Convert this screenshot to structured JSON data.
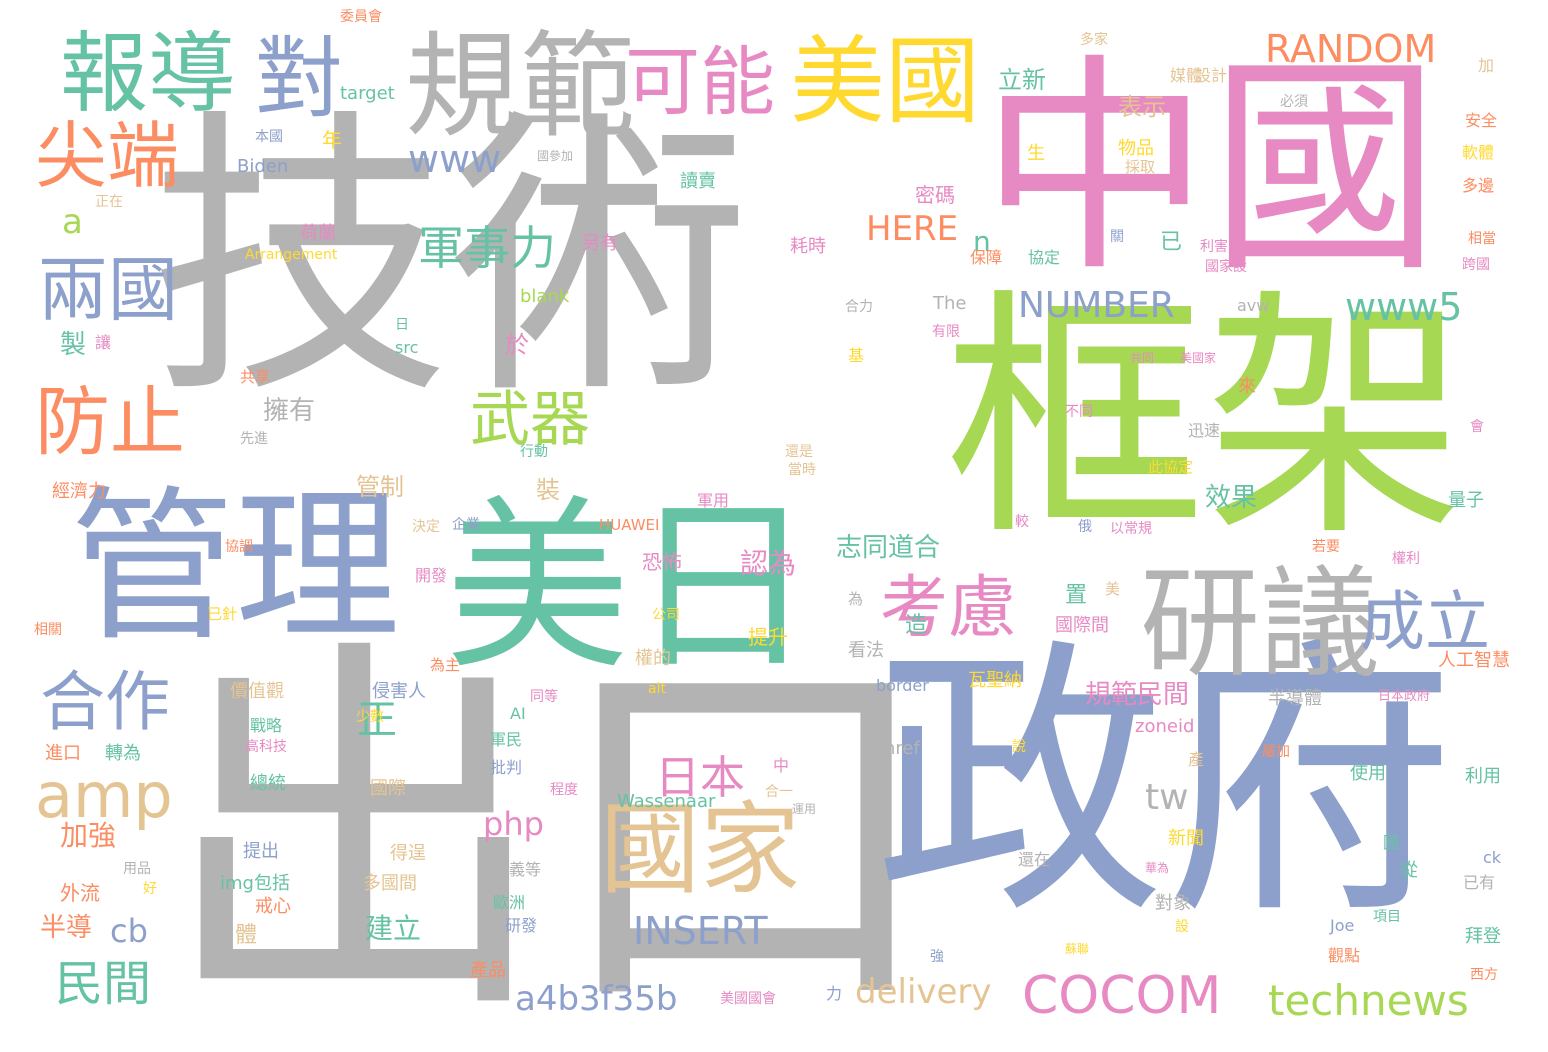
{
  "colors": {
    "gray": "#b3b3b3",
    "blue": "#8da0cb",
    "green": "#a6d854",
    "pink": "#e78ac3",
    "teal": "#66c2a5",
    "orange": "#fc8d62",
    "yellow": "#ffd92f",
    "tan": "#e5c494"
  },
  "words": [
    {
      "text": "技術",
      "color": "gray"
    },
    {
      "text": "出口",
      "color": "gray"
    },
    {
      "text": "中國",
      "color": "pink"
    },
    {
      "text": "框架",
      "color": "green"
    },
    {
      "text": "政府",
      "color": "blue"
    },
    {
      "text": "管理",
      "color": "blue"
    },
    {
      "text": "美日",
      "color": "teal"
    },
    {
      "text": "規範",
      "color": "gray"
    },
    {
      "text": "研議",
      "color": "gray"
    },
    {
      "text": "美國",
      "color": "yellow"
    },
    {
      "text": "報導",
      "color": "teal"
    },
    {
      "text": "對",
      "color": "blue"
    },
    {
      "text": "可能",
      "color": "pink"
    },
    {
      "text": "國家",
      "color": "tan"
    },
    {
      "text": "尖端",
      "color": "orange"
    },
    {
      "text": "兩國",
      "color": "blue"
    },
    {
      "text": "防止",
      "color": "orange"
    },
    {
      "text": "考慮",
      "color": "pink"
    },
    {
      "text": "成立",
      "color": "blue"
    },
    {
      "text": "合作",
      "color": "blue"
    },
    {
      "text": "amp",
      "color": "tan"
    },
    {
      "text": "武器",
      "color": "green"
    },
    {
      "text": "COCOM",
      "color": "pink"
    },
    {
      "text": "technews",
      "color": "green"
    },
    {
      "text": "RANDOM",
      "color": "orange"
    },
    {
      "text": "www",
      "color": "blue"
    },
    {
      "text": "www5",
      "color": "teal"
    },
    {
      "text": "NUMBER",
      "color": "blue"
    },
    {
      "text": "軍事力",
      "color": "teal"
    },
    {
      "text": "日本",
      "color": "pink"
    },
    {
      "text": "INSERT",
      "color": "blue"
    },
    {
      "text": "a4b3f35b",
      "color": "blue"
    },
    {
      "text": "delivery",
      "color": "tan"
    },
    {
      "text": "民間",
      "color": "teal"
    },
    {
      "text": "HERE",
      "color": "orange"
    },
    {
      "text": "正",
      "color": "teal"
    },
    {
      "text": "tw",
      "color": "gray"
    },
    {
      "text": "php",
      "color": "pink"
    },
    {
      "text": "規範民間",
      "color": "pink"
    },
    {
      "text": "志同道合",
      "color": "teal"
    },
    {
      "text": "認為",
      "color": "pink"
    },
    {
      "text": "a",
      "color": "green"
    },
    {
      "text": "cb",
      "color": "blue"
    },
    {
      "text": "表示",
      "color": "tan"
    },
    {
      "text": "立新",
      "color": "teal"
    },
    {
      "text": "擁有",
      "color": "gray"
    },
    {
      "text": "效果",
      "color": "teal"
    },
    {
      "text": "管制",
      "color": "tan"
    },
    {
      "text": "建立",
      "color": "teal"
    },
    {
      "text": "加強",
      "color": "orange"
    },
    {
      "text": "半導",
      "color": "orange"
    },
    {
      "text": "n",
      "color": "teal"
    },
    {
      "text": "已",
      "color": "teal"
    },
    {
      "text": "於",
      "color": "pink"
    },
    {
      "text": "裝",
      "color": "tan"
    },
    {
      "text": "置",
      "color": "teal"
    },
    {
      "text": "造",
      "color": "teal"
    },
    {
      "text": "提升",
      "color": "yellow"
    },
    {
      "text": "製",
      "color": "teal"
    },
    {
      "text": "年",
      "color": "yellow"
    },
    {
      "text": "體",
      "color": "tan"
    },
    {
      "text": "Wassenaar",
      "color": "teal"
    },
    {
      "text": "target",
      "color": "teal"
    },
    {
      "text": "Biden",
      "color": "blue"
    },
    {
      "text": "媒體",
      "color": "tan"
    },
    {
      "text": "設計",
      "color": "tan"
    },
    {
      "text": "加",
      "color": "tan"
    },
    {
      "text": "安全",
      "color": "orange"
    },
    {
      "text": "軟體",
      "color": "yellow"
    },
    {
      "text": "多家",
      "color": "tan"
    },
    {
      "text": "委員會",
      "color": "orange"
    },
    {
      "text": "本國",
      "color": "blue"
    },
    {
      "text": "國參加",
      "color": "gray"
    },
    {
      "text": "正在",
      "color": "tan"
    },
    {
      "text": "讀賣",
      "color": "teal"
    },
    {
      "text": "密碼",
      "color": "pink"
    },
    {
      "text": "物品",
      "color": "yellow"
    },
    {
      "text": "生",
      "color": "yellow"
    },
    {
      "text": "採取",
      "color": "tan"
    },
    {
      "text": "必須",
      "color": "gray"
    },
    {
      "text": "多邊",
      "color": "orange"
    },
    {
      "text": "荷蘭",
      "color": "pink"
    },
    {
      "text": "另有",
      "color": "pink"
    },
    {
      "text": "耗時",
      "color": "pink"
    },
    {
      "text": "保障",
      "color": "orange"
    },
    {
      "text": "協定",
      "color": "teal"
    },
    {
      "text": "關",
      "color": "blue"
    },
    {
      "text": "利害",
      "color": "pink"
    },
    {
      "text": "相當",
      "color": "orange"
    },
    {
      "text": "國家設",
      "color": "pink"
    },
    {
      "text": "跨國",
      "color": "pink"
    },
    {
      "text": "Arrangement",
      "color": "yellow"
    },
    {
      "text": "blank",
      "color": "green"
    },
    {
      "text": "合力",
      "color": "gray"
    },
    {
      "text": "The",
      "color": "gray"
    },
    {
      "text": "avw",
      "color": "gray"
    },
    {
      "text": "有限",
      "color": "pink"
    },
    {
      "text": "讓",
      "color": "pink"
    },
    {
      "text": "日",
      "color": "teal"
    },
    {
      "text": "src",
      "color": "teal"
    },
    {
      "text": "基",
      "color": "yellow"
    },
    {
      "text": "共享",
      "color": "orange"
    },
    {
      "text": "共同",
      "color": "pink"
    },
    {
      "text": "美國家",
      "color": "pink"
    },
    {
      "text": "來",
      "color": "orange"
    },
    {
      "text": "係",
      "color": "green"
    },
    {
      "text": "不同",
      "color": "pink"
    },
    {
      "text": "迅速",
      "color": "gray"
    },
    {
      "text": "會",
      "color": "pink"
    },
    {
      "text": "先進",
      "color": "gray"
    },
    {
      "text": "行動",
      "color": "teal"
    },
    {
      "text": "還是",
      "color": "tan"
    },
    {
      "text": "當時",
      "color": "tan"
    },
    {
      "text": "此協定",
      "color": "yellow"
    },
    {
      "text": "經濟力",
      "color": "orange"
    },
    {
      "text": "軍用",
      "color": "pink"
    },
    {
      "text": "量子",
      "color": "teal"
    },
    {
      "text": "決定",
      "color": "tan"
    },
    {
      "text": "企業",
      "color": "blue"
    },
    {
      "text": "HUAWEI",
      "color": "orange"
    },
    {
      "text": "較",
      "color": "pink"
    },
    {
      "text": "俄",
      "color": "blue"
    },
    {
      "text": "以常規",
      "color": "pink"
    },
    {
      "text": "若要",
      "color": "orange"
    },
    {
      "text": "權利",
      "color": "pink"
    },
    {
      "text": "協調",
      "color": "orange"
    },
    {
      "text": "開發",
      "color": "pink"
    },
    {
      "text": "恐怖",
      "color": "pink"
    },
    {
      "text": "美",
      "color": "tan"
    },
    {
      "text": "為",
      "color": "gray"
    },
    {
      "text": "已針",
      "color": "yellow"
    },
    {
      "text": "公司",
      "color": "yellow"
    },
    {
      "text": "國際間",
      "color": "pink"
    },
    {
      "text": "相關",
      "color": "orange"
    },
    {
      "text": "為主",
      "color": "orange"
    },
    {
      "text": "權的",
      "color": "tan"
    },
    {
      "text": "看法",
      "color": "gray"
    },
    {
      "text": "瓦聖納",
      "color": "yellow"
    },
    {
      "text": "人工智慧",
      "color": "orange"
    },
    {
      "text": "價值觀",
      "color": "tan"
    },
    {
      "text": "侵害人",
      "color": "blue"
    },
    {
      "text": "alt",
      "color": "yellow"
    },
    {
      "text": "border",
      "color": "blue"
    },
    {
      "text": "半導體",
      "color": "gray"
    },
    {
      "text": "日本政府",
      "color": "pink"
    },
    {
      "text": "少數",
      "color": "yellow"
    },
    {
      "text": "同等",
      "color": "pink"
    },
    {
      "text": "AI",
      "color": "teal"
    },
    {
      "text": "zoneid",
      "color": "pink"
    },
    {
      "text": "戰略",
      "color": "teal"
    },
    {
      "text": "高科技",
      "color": "pink"
    },
    {
      "text": "軍民",
      "color": "teal"
    },
    {
      "text": "進口",
      "color": "orange"
    },
    {
      "text": "轉為",
      "color": "teal"
    },
    {
      "text": "href",
      "color": "gray"
    },
    {
      "text": "說",
      "color": "yellow"
    },
    {
      "text": "嚴加",
      "color": "orange"
    },
    {
      "text": "產",
      "color": "tan"
    },
    {
      "text": "批判",
      "color": "blue"
    },
    {
      "text": "總統",
      "color": "teal"
    },
    {
      "text": "國際",
      "color": "tan"
    },
    {
      "text": "程度",
      "color": "pink"
    },
    {
      "text": "中",
      "color": "pink"
    },
    {
      "text": "合一",
      "color": "tan"
    },
    {
      "text": "運用",
      "color": "gray"
    },
    {
      "text": "使用",
      "color": "teal"
    },
    {
      "text": "利用",
      "color": "teal"
    },
    {
      "text": "提出",
      "color": "blue"
    },
    {
      "text": "得逞",
      "color": "tan"
    },
    {
      "text": "用品",
      "color": "gray"
    },
    {
      "text": "好",
      "color": "yellow"
    },
    {
      "text": "新聞",
      "color": "yellow"
    },
    {
      "text": "國",
      "color": "teal"
    },
    {
      "text": "還在",
      "color": "gray"
    },
    {
      "text": "華為",
      "color": "pink"
    },
    {
      "text": "從",
      "color": "teal"
    },
    {
      "text": "ck",
      "color": "blue"
    },
    {
      "text": "已有",
      "color": "gray"
    },
    {
      "text": "主義等",
      "color": "gray"
    },
    {
      "text": "外流",
      "color": "orange"
    },
    {
      "text": "img包括",
      "color": "teal"
    },
    {
      "text": "多國間",
      "color": "tan"
    },
    {
      "text": "歐洲",
      "color": "teal"
    },
    {
      "text": "戒心",
      "color": "orange"
    },
    {
      "text": "研發",
      "color": "blue"
    },
    {
      "text": "對象",
      "color": "gray"
    },
    {
      "text": "Joe",
      "color": "blue"
    },
    {
      "text": "項目",
      "color": "teal"
    },
    {
      "text": "設",
      "color": "yellow"
    },
    {
      "text": "拜登",
      "color": "teal"
    },
    {
      "text": "強",
      "color": "blue"
    },
    {
      "text": "蘇聯",
      "color": "yellow"
    },
    {
      "text": "觀點",
      "color": "orange"
    },
    {
      "text": "產品",
      "color": "orange"
    },
    {
      "text": "力",
      "color": "blue"
    },
    {
      "text": "美國國會",
      "color": "pink"
    },
    {
      "text": "西方",
      "color": "orange"
    }
  ]
}
